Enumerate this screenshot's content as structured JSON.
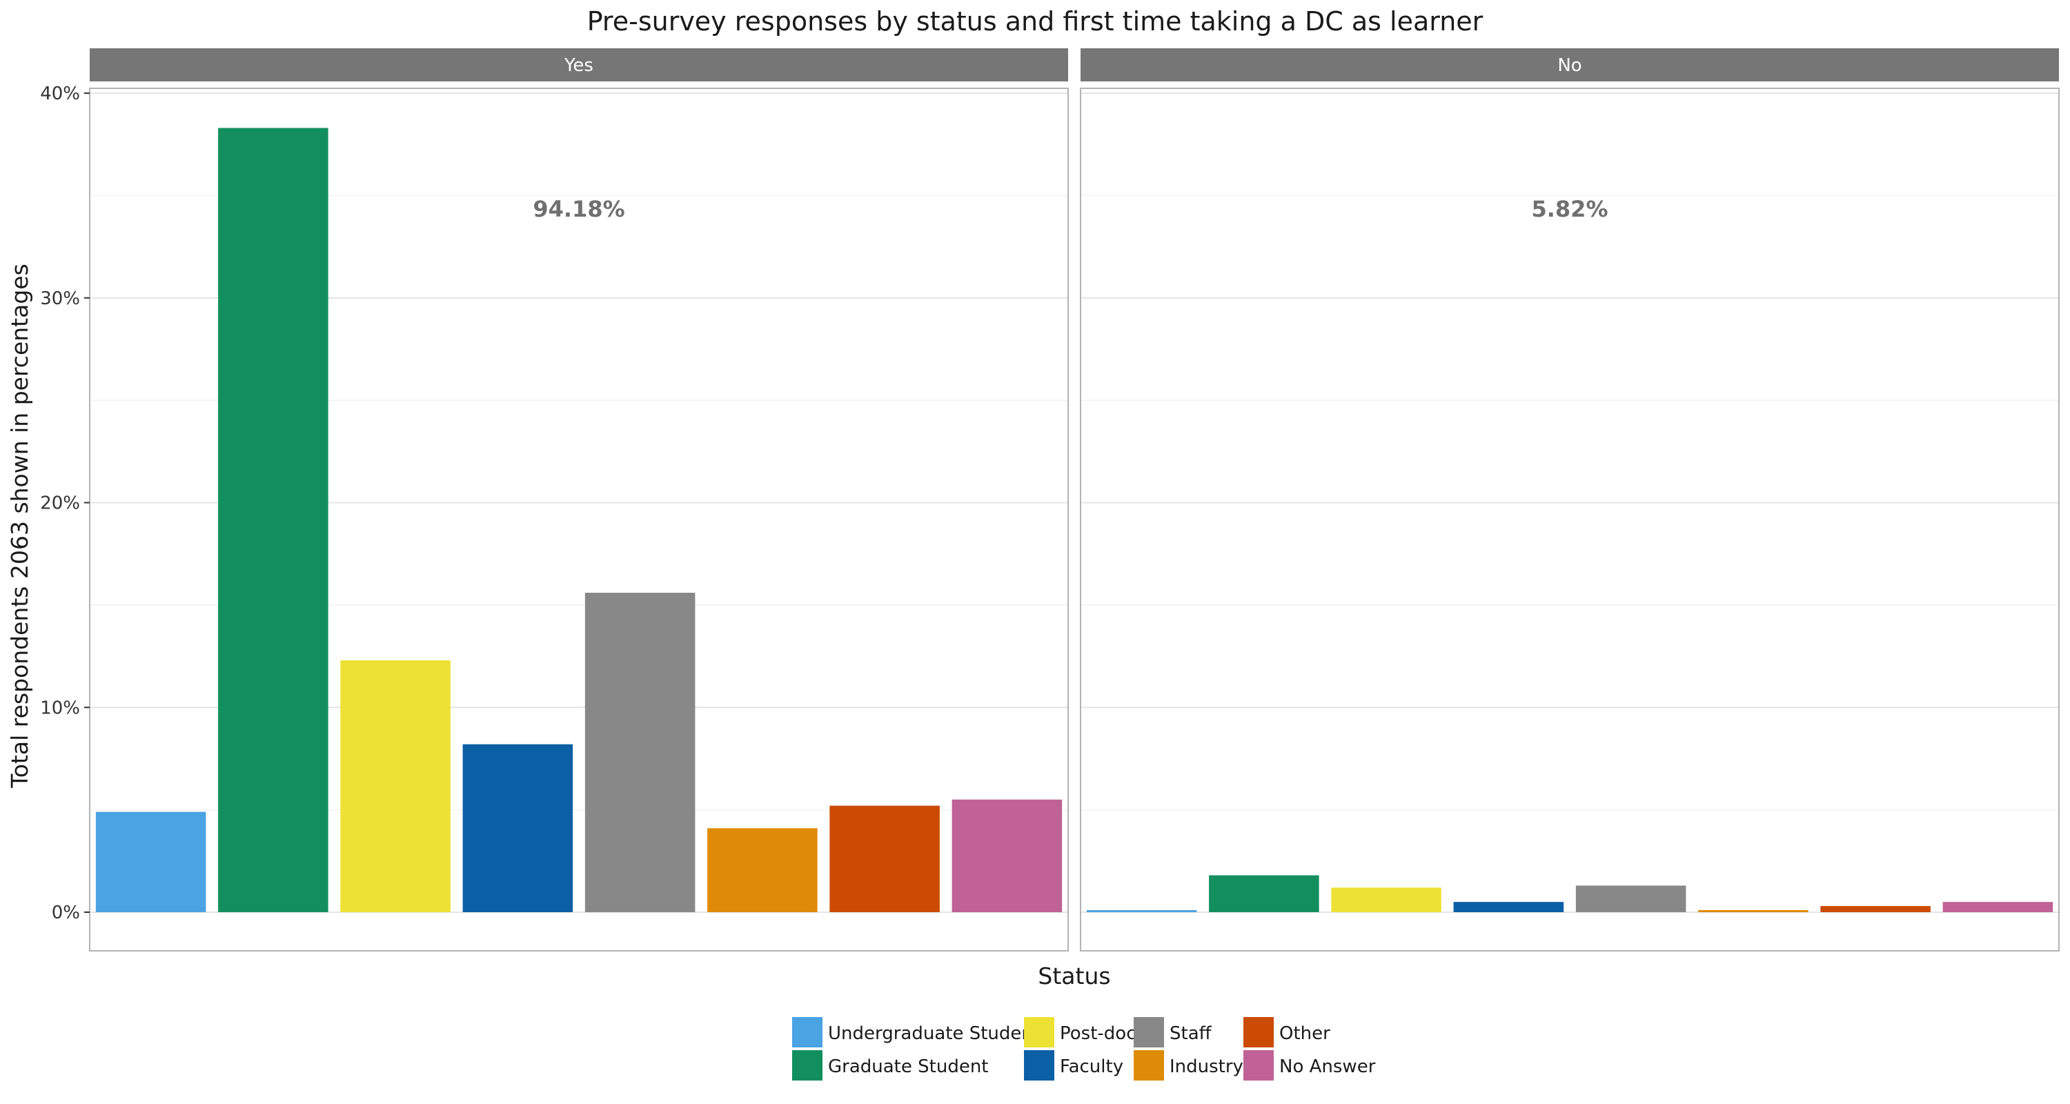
{
  "chart_data": {
    "type": "bar",
    "title": "Pre-survey responses by status and first time taking a DC as learner",
    "xlabel": "Status",
    "ylabel": "Total respondents 2063 shown in percentages",
    "ylim": [
      0,
      40
    ],
    "yticks": [
      0,
      10,
      20,
      30,
      40
    ],
    "ytick_labels": [
      "0%",
      "10%",
      "20%",
      "30%",
      "40%"
    ],
    "grid": true,
    "legend_position": "bottom",
    "categories": [
      "Undergraduate Student",
      "Graduate Student",
      "Post-doc",
      "Faculty",
      "Staff",
      "Industry",
      "Other",
      "No Answer"
    ],
    "colors": [
      "#4aa3e2",
      "#138f5f",
      "#ede234",
      "#0b5fa4",
      "#888888",
      "#df8b0a",
      "#cc4b04",
      "#c06295"
    ],
    "panels": [
      {
        "label": "Yes",
        "share_label": "94.18%",
        "values": [
          4.9,
          38.3,
          12.3,
          8.2,
          15.6,
          4.1,
          5.2,
          5.5
        ]
      },
      {
        "label": "No",
        "share_label": "5.82%",
        "values": [
          0.1,
          1.8,
          1.2,
          0.5,
          1.3,
          0.1,
          0.3,
          0.5
        ]
      }
    ]
  }
}
